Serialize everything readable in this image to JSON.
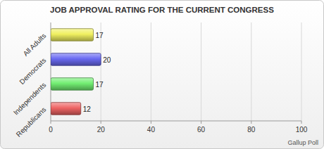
{
  "chart_data": {
    "type": "bar",
    "orientation": "horizontal",
    "title": "JOB APPROVAL RATING FOR THE CURRENT CONGRESS",
    "categories": [
      "All Adults",
      "Democrats",
      "Independents",
      "Republicans"
    ],
    "values": [
      17,
      20,
      17,
      12
    ],
    "colors": [
      "#f0f060",
      "#6a6af2",
      "#72ee72",
      "#ee6464"
    ],
    "xlim": [
      0,
      100
    ],
    "xticks": [
      0,
      20,
      40,
      60,
      80,
      100
    ],
    "grid": true,
    "data_labels": true,
    "annotation": "Gallup Poll"
  }
}
